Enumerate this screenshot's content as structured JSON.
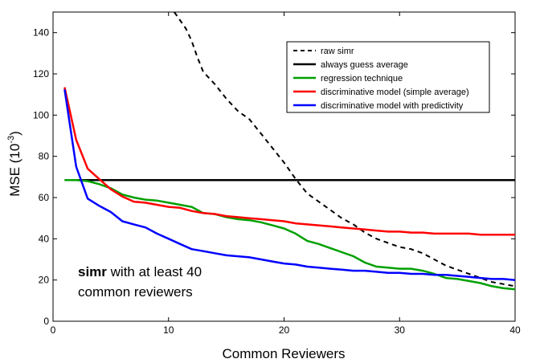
{
  "chart_data": {
    "type": "line",
    "title": "",
    "xlabel": "Common Reviewers",
    "ylabel_main": "MSE (10",
    "ylabel_sup": "-3",
    "ylabel_close": ")",
    "xlim": [
      0,
      40
    ],
    "ylim": [
      0,
      150
    ],
    "xticks": [
      0,
      10,
      20,
      30,
      40
    ],
    "yticks": [
      0,
      20,
      40,
      60,
      80,
      100,
      120,
      140
    ],
    "grid": false,
    "legend_position": "top-right",
    "annotation": {
      "bold": "simr",
      "rest": " with at least 40",
      "line2": "common reviewers"
    },
    "series": [
      {
        "name": "raw simr",
        "color": "#000000",
        "dash": true,
        "x": [
          10.5,
          11.5,
          12,
          12.5,
          13,
          14,
          15,
          16,
          17,
          18,
          19,
          20,
          21,
          22,
          23,
          24,
          25,
          26,
          27,
          28,
          29,
          30,
          31,
          32,
          33,
          34,
          35,
          36,
          37,
          38,
          39,
          40
        ],
        "y": [
          150,
          142,
          136,
          128,
          121,
          115,
          108,
          102,
          98,
          91,
          84,
          77,
          69,
          62,
          58,
          54,
          50,
          47,
          43,
          40,
          38,
          36,
          35,
          33,
          30,
          27,
          25,
          23,
          21,
          19,
          18,
          17
        ]
      },
      {
        "name": "always guess average",
        "color": "#000000",
        "dash": false,
        "x": [
          1,
          40
        ],
        "y": [
          68.5,
          68.5
        ]
      },
      {
        "name": "regression technique",
        "color": "#00a000",
        "dash": false,
        "x": [
          1,
          2,
          3,
          4,
          5,
          6,
          7,
          8,
          9,
          10,
          11,
          12,
          13,
          14,
          15,
          16,
          17,
          18,
          19,
          20,
          21,
          22,
          23,
          24,
          25,
          26,
          27,
          28,
          29,
          30,
          31,
          32,
          33,
          34,
          35,
          36,
          37,
          38,
          39,
          40
        ],
        "y": [
          68.5,
          68.5,
          68,
          66.5,
          64.5,
          61.5,
          60,
          59,
          58.5,
          57.5,
          56.5,
          55.5,
          52.5,
          52,
          50.5,
          49.5,
          49,
          48,
          46.5,
          45,
          42.5,
          39,
          37.5,
          35.5,
          33.5,
          31.5,
          28.5,
          26.5,
          26,
          25.5,
          25.5,
          24.5,
          23,
          21,
          20.5,
          19.5,
          18.5,
          17,
          16,
          15.5
        ]
      },
      {
        "name": "discriminative model (simple average)",
        "color": "#ff0000",
        "dash": false,
        "x": [
          1,
          2,
          3,
          4,
          5,
          6,
          7,
          8,
          9,
          10,
          11,
          12,
          13,
          14,
          15,
          16,
          17,
          18,
          19,
          20,
          21,
          22,
          23,
          24,
          25,
          26,
          27,
          28,
          29,
          30,
          31,
          32,
          33,
          34,
          35,
          36,
          37,
          38,
          39,
          40
        ],
        "y": [
          113.5,
          88,
          74,
          69,
          64,
          60.5,
          58,
          57.5,
          56.5,
          55.5,
          55,
          53.5,
          52.5,
          52,
          51,
          50.5,
          50,
          49.5,
          49,
          48.5,
          47.5,
          47,
          46.5,
          46,
          45.5,
          45,
          44.5,
          44,
          43.5,
          43.5,
          43,
          43,
          42.5,
          42.5,
          42.5,
          42.5,
          42,
          42,
          42,
          42
        ]
      },
      {
        "name": "discriminative model with predictivity",
        "color": "#0000ff",
        "dash": false,
        "x": [
          1,
          2,
          3,
          4,
          5,
          6,
          7,
          8,
          9,
          10,
          11,
          12,
          13,
          14,
          15,
          16,
          17,
          18,
          19,
          20,
          21,
          22,
          23,
          24,
          25,
          26,
          27,
          28,
          29,
          30,
          31,
          32,
          33,
          34,
          35,
          36,
          37,
          38,
          39,
          40
        ],
        "y": [
          112.5,
          75,
          59.5,
          56,
          53,
          48.5,
          47,
          45.5,
          42.5,
          40,
          37.5,
          35,
          34,
          33,
          32,
          31.5,
          31,
          30,
          29,
          28,
          27.5,
          26.5,
          26,
          25.5,
          25,
          24.5,
          24.5,
          24,
          23.5,
          23.5,
          23,
          23,
          22.5,
          22.5,
          22,
          21.5,
          21,
          20.5,
          20.5,
          20
        ]
      }
    ]
  }
}
